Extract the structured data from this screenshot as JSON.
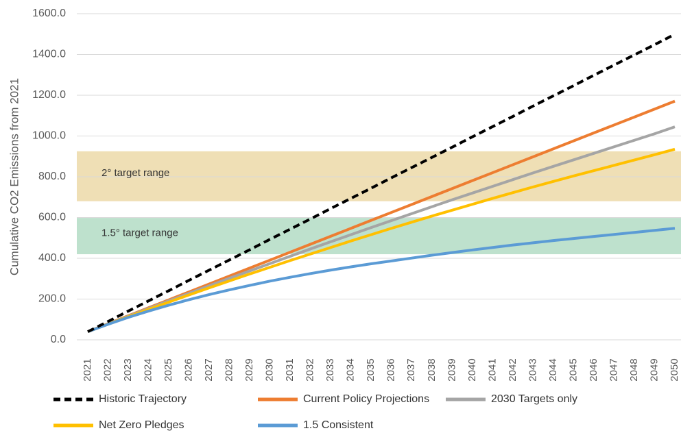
{
  "chart_data": {
    "type": "line",
    "ylabel": "Cumulative CO2 Emissions from 2021",
    "categories": [
      "2021",
      "2022",
      "2023",
      "2024",
      "2025",
      "2026",
      "2027",
      "2028",
      "2029",
      "2030",
      "2031",
      "2032",
      "2033",
      "2034",
      "2035",
      "2036",
      "2037",
      "2038",
      "2039",
      "2040",
      "2041",
      "2042",
      "2043",
      "2044",
      "2045",
      "2046",
      "2047",
      "2048",
      "2049",
      "2050"
    ],
    "ylim": [
      0,
      1600
    ],
    "yticks": [
      {
        "value": 0,
        "label": "0.0"
      },
      {
        "value": 200,
        "label": "200.0"
      },
      {
        "value": 400,
        "label": "400.0"
      },
      {
        "value": 600,
        "label": "600.0"
      },
      {
        "value": 800,
        "label": "800.0"
      },
      {
        "value": 1000,
        "label": "1000.0"
      },
      {
        "value": 1200,
        "label": "1200.0"
      },
      {
        "value": 1400,
        "label": "1400.0"
      },
      {
        "value": 1600,
        "label": "1600.0"
      }
    ],
    "grid": true,
    "legend": "bottom",
    "bands": [
      {
        "label": "2° target range",
        "range": [
          680,
          925
        ],
        "color": "#ecd9a8"
      },
      {
        "label": "1.5° target range",
        "range": [
          420,
          598
        ],
        "color": "#b3dcc4"
      }
    ],
    "series": [
      {
        "name": "Historic Trajectory",
        "color": "#000000",
        "style": "dashed",
        "values": [
          40,
          90,
          141,
          191,
          241,
          292,
          342,
          392,
          442,
          493,
          543,
          593,
          644,
          694,
          744,
          795,
          845,
          895,
          945,
          996,
          1046,
          1096,
          1147,
          1197,
          1247,
          1298,
          1348,
          1398,
          1448,
          1499
        ]
      },
      {
        "name": "Current Policy Projections",
        "color": "#ed7d31",
        "style": "solid",
        "values": [
          40,
          79,
          118,
          157,
          196,
          235,
          274,
          313,
          352,
          391,
          430,
          469,
          508,
          547,
          586,
          625,
          664,
          703,
          742,
          781,
          820,
          859,
          898,
          937,
          976,
          1015,
          1054,
          1093,
          1132,
          1171
        ]
      },
      {
        "name": "2030 Targets only",
        "color": "#a5a5a5",
        "style": "solid",
        "values": [
          40,
          78,
          116,
          154,
          191,
          228,
          265,
          302,
          338,
          374,
          410,
          446,
          481,
          516,
          551,
          585,
          619,
          653,
          687,
          720,
          753,
          786,
          819,
          851,
          883,
          915,
          947,
          979,
          1011,
          1045
        ]
      },
      {
        "name": "Net Zero Pledges",
        "color": "#ffc000",
        "style": "solid",
        "values": [
          40,
          77,
          113,
          149,
          185,
          220,
          255,
          289,
          323,
          356,
          389,
          421,
          453,
          485,
          516,
          547,
          577,
          607,
          636,
          665,
          694,
          722,
          750,
          777,
          804,
          830,
          856,
          882,
          908,
          935
        ]
      },
      {
        "name": "1.5 Consistent",
        "color": "#5b9bd5",
        "style": "solid",
        "values": [
          40,
          76,
          110,
          141,
          170,
          197,
          222,
          245,
          267,
          288,
          307,
          325,
          342,
          358,
          373,
          387,
          401,
          415,
          428,
          441,
          453,
          465,
          476,
          487,
          497,
          507,
          517,
          527,
          537,
          547
        ]
      }
    ]
  }
}
